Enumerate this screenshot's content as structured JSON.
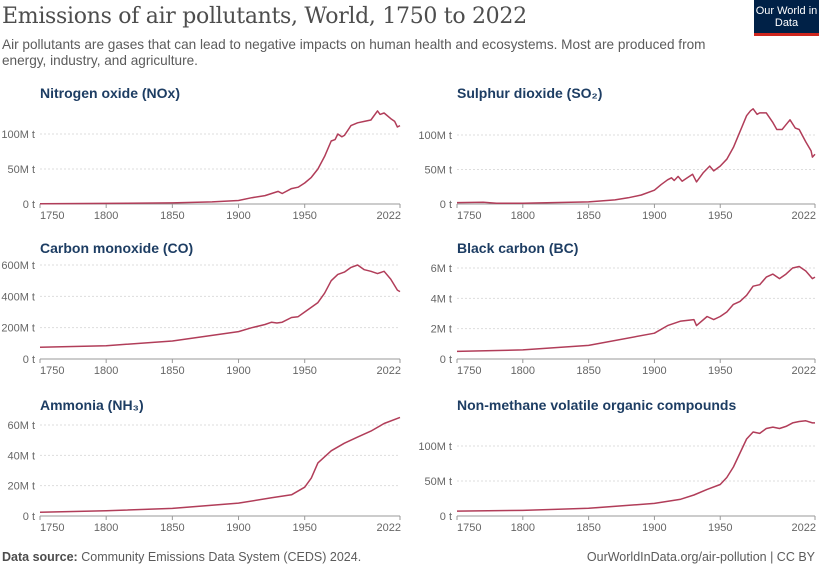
{
  "header": {
    "title": "Emissions of air pollutants, World, 1750 to 2022",
    "subtitle": "Air pollutants are gases that can lead to negative impacts on human health and ecosystems. Most are produced from energy, industry, and agriculture.",
    "logo_text": "Our World in Data"
  },
  "footer": {
    "source_label": "Data source:",
    "source_text": "Community Emissions Data System (CEDS) 2024.",
    "right_text": "OurWorldInData.org/air-pollution | CC BY"
  },
  "colors": {
    "line": "#b13d59",
    "grid": "#dddddd",
    "title": "#1d3d63",
    "logo_bg": "#002147",
    "logo_accent": "#ce261e"
  },
  "chart_data": [
    {
      "type": "line",
      "title": "Nitrogen oxide (NOx)",
      "unit": "t",
      "x_ticks": [
        "1750",
        "1800",
        "1850",
        "1900",
        "1950",
        "2022"
      ],
      "y_ticks": [
        "0 t",
        "50M t",
        "100M t"
      ],
      "y_tick_values": [
        0,
        50,
        100
      ],
      "xlim": [
        1750,
        2022
      ],
      "grid": true,
      "x": [
        1750,
        1800,
        1850,
        1880,
        1900,
        1910,
        1920,
        1930,
        1933,
        1940,
        1945,
        1950,
        1955,
        1960,
        1965,
        1970,
        1973,
        1975,
        1978,
        1980,
        1985,
        1990,
        1995,
        2000,
        2005,
        2007,
        2010,
        2015,
        2018,
        2020,
        2022
      ],
      "y": [
        0.5,
        0.8,
        1.5,
        3,
        5,
        9,
        12,
        18,
        15,
        22,
        24,
        30,
        38,
        50,
        68,
        90,
        92,
        100,
        96,
        98,
        112,
        116,
        118,
        120,
        133,
        128,
        130,
        122,
        118,
        110,
        112
      ]
    },
    {
      "type": "line",
      "title": "Sulphur dioxide (SO₂)",
      "unit": "t",
      "x_ticks": [
        "1750",
        "1800",
        "1850",
        "1900",
        "1950",
        "2022"
      ],
      "y_ticks": [
        "0 t",
        "50M t",
        "100M t"
      ],
      "y_tick_values": [
        0,
        50,
        100
      ],
      "xlim": [
        1750,
        2022
      ],
      "grid": true,
      "x": [
        1750,
        1770,
        1780,
        1800,
        1850,
        1870,
        1880,
        1890,
        1900,
        1905,
        1910,
        1913,
        1915,
        1918,
        1921,
        1925,
        1929,
        1932,
        1937,
        1942,
        1945,
        1950,
        1955,
        1960,
        1965,
        1970,
        1973,
        1975,
        1978,
        1980,
        1985,
        1990,
        1993,
        1997,
        2000,
        2003,
        2007,
        2010,
        2015,
        2019,
        2020,
        2022
      ],
      "y": [
        2,
        2.5,
        1,
        1,
        3,
        6,
        9,
        13,
        20,
        28,
        35,
        38,
        34,
        40,
        33,
        38,
        43,
        32,
        45,
        55,
        48,
        55,
        65,
        82,
        105,
        128,
        135,
        138,
        130,
        132,
        132,
        118,
        108,
        108,
        115,
        122,
        110,
        108,
        90,
        77,
        68,
        72
      ]
    },
    {
      "type": "line",
      "title": "Carbon monoxide (CO)",
      "unit": "t",
      "x_ticks": [
        "1750",
        "1800",
        "1850",
        "1900",
        "1950",
        "2022"
      ],
      "y_ticks": [
        "0 t",
        "200M t",
        "400M t",
        "600M t"
      ],
      "y_tick_values": [
        0,
        200,
        400,
        600
      ],
      "xlim": [
        1750,
        2022
      ],
      "grid": true,
      "x": [
        1750,
        1800,
        1850,
        1900,
        1910,
        1920,
        1925,
        1929,
        1933,
        1940,
        1945,
        1950,
        1960,
        1965,
        1970,
        1975,
        1980,
        1985,
        1990,
        1995,
        2000,
        2005,
        2010,
        2015,
        2020,
        2022
      ],
      "y": [
        75,
        85,
        115,
        175,
        200,
        220,
        235,
        230,
        235,
        265,
        270,
        300,
        360,
        420,
        500,
        540,
        555,
        585,
        600,
        570,
        560,
        545,
        560,
        510,
        440,
        430
      ]
    },
    {
      "type": "line",
      "title": "Black carbon (BC)",
      "unit": "t",
      "x_ticks": [
        "1750",
        "1800",
        "1850",
        "1900",
        "1950",
        "2022"
      ],
      "y_ticks": [
        "0 t",
        "2M t",
        "4M t",
        "6M t"
      ],
      "y_tick_values": [
        0,
        2,
        4,
        6
      ],
      "xlim": [
        1750,
        2022
      ],
      "grid": true,
      "x": [
        1750,
        1800,
        1850,
        1900,
        1910,
        1920,
        1930,
        1932,
        1940,
        1945,
        1950,
        1955,
        1960,
        1965,
        1970,
        1975,
        1980,
        1985,
        1990,
        1995,
        2000,
        2005,
        2010,
        2015,
        2020,
        2022
      ],
      "y": [
        0.5,
        0.6,
        0.9,
        1.7,
        2.2,
        2.5,
        2.6,
        2.2,
        2.8,
        2.6,
        2.8,
        3.1,
        3.6,
        3.8,
        4.2,
        4.8,
        4.9,
        5.4,
        5.6,
        5.3,
        5.6,
        6.0,
        6.1,
        5.8,
        5.3,
        5.4
      ]
    },
    {
      "type": "line",
      "title": "Ammonia (NH₃)",
      "unit": "t",
      "x_ticks": [
        "1750",
        "1800",
        "1850",
        "1900",
        "1950",
        "2022"
      ],
      "y_ticks": [
        "0 t",
        "20M t",
        "40M t",
        "60M t"
      ],
      "y_tick_values": [
        0,
        20,
        40,
        60
      ],
      "xlim": [
        1750,
        2022
      ],
      "grid": true,
      "x": [
        1750,
        1800,
        1850,
        1900,
        1925,
        1940,
        1950,
        1955,
        1960,
        1970,
        1980,
        1990,
        2000,
        2010,
        2022
      ],
      "y": [
        2.5,
        3.5,
        5,
        8.5,
        12,
        14,
        19,
        25,
        35,
        43,
        48,
        52,
        56,
        61,
        65
      ]
    },
    {
      "type": "line",
      "title": "Non-methane volatile organic compounds",
      "unit": "t",
      "x_ticks": [
        "1750",
        "1800",
        "1850",
        "1900",
        "1950",
        "2022"
      ],
      "y_ticks": [
        "0 t",
        "50M t",
        "100M t"
      ],
      "y_tick_values": [
        0,
        50,
        100
      ],
      "xlim": [
        1750,
        2022
      ],
      "grid": true,
      "x": [
        1750,
        1800,
        1850,
        1900,
        1920,
        1930,
        1940,
        1950,
        1955,
        1960,
        1965,
        1970,
        1975,
        1980,
        1985,
        1990,
        1995,
        2000,
        2005,
        2010,
        2015,
        2020,
        2022
      ],
      "y": [
        7,
        8,
        11,
        18,
        24,
        30,
        38,
        45,
        55,
        70,
        90,
        110,
        120,
        118,
        125,
        127,
        125,
        128,
        133,
        135,
        136,
        133,
        133
      ]
    }
  ]
}
